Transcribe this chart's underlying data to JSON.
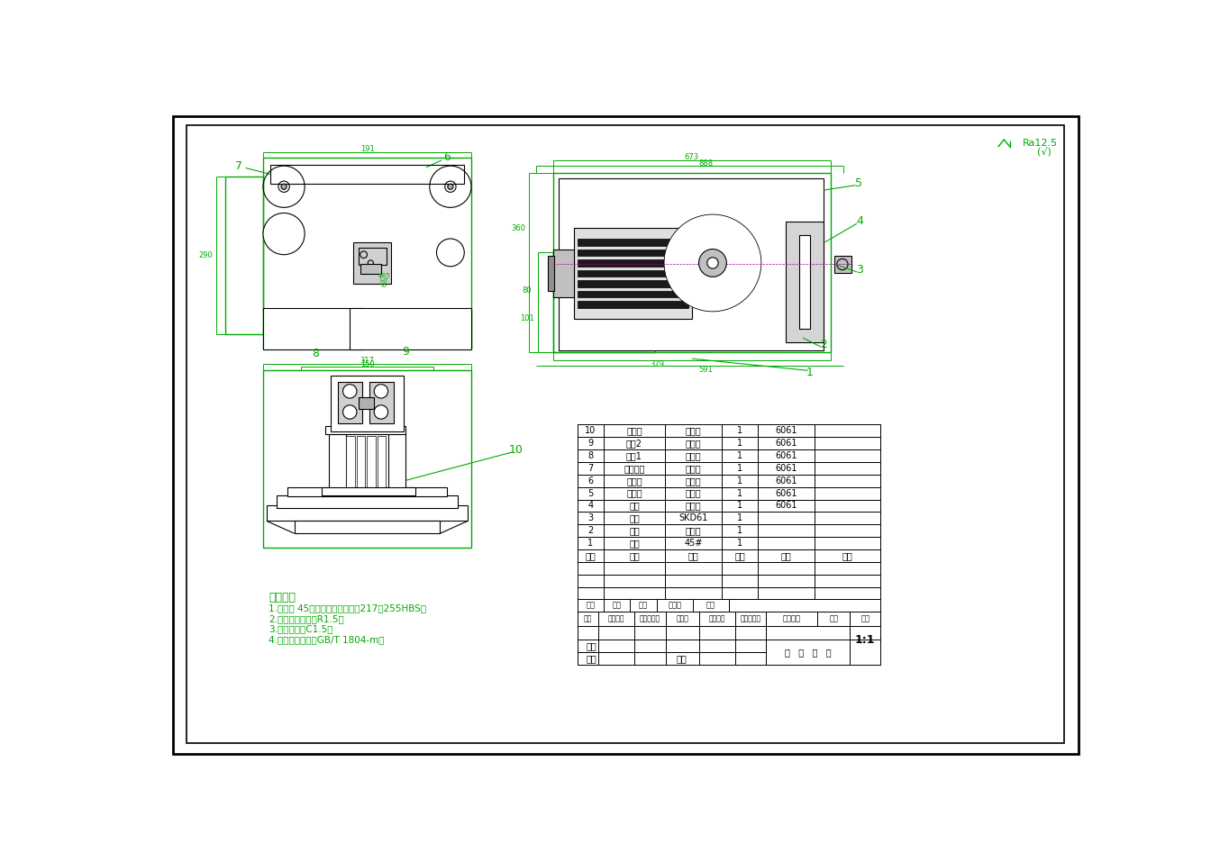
{
  "bg_color": "#ffffff",
  "border_color": "#000000",
  "green_color": "#00AA00",
  "dark_green": "#006600",
  "gray_color": "#808080",
  "light_gray": "#C0C0C0",
  "tech_req_title": "技术要求",
  "tech_req": [
    "1.热处理 45，调质处理，硬度为217～255HBS；",
    "2.未注圆角半径为R1.5；",
    "3.未注倒角为C1.5；",
    "4.未注尺寸公差按GB/T 1804-m。"
  ],
  "bom_rows": [
    [
      "10",
      "偶心轮",
      "铝合金",
      "1",
      "6061",
      ""
    ],
    [
      "9",
      "摇板2",
      "铝合金",
      "1",
      "6061",
      ""
    ],
    [
      "8",
      "摇板1",
      "铝合金",
      "1",
      "6061",
      ""
    ],
    [
      "7",
      "连杆钉钉",
      "铝合金",
      "1",
      "6061",
      ""
    ],
    [
      "6",
      "连杆轮",
      "铝合金",
      "1",
      "6061",
      ""
    ],
    [
      "5",
      "曲柄轮",
      "铝合金",
      "1",
      "6061",
      ""
    ],
    [
      "4",
      "连杆",
      "铝合金",
      "1",
      "6061",
      ""
    ],
    [
      "3",
      "销钉",
      "SKD61",
      "1",
      "",
      ""
    ],
    [
      "2",
      "印章",
      "不锈锂",
      "1",
      "",
      ""
    ],
    [
      "1",
      "底座",
      "45#",
      "1",
      "",
      ""
    ]
  ],
  "bom_header": [
    "序号",
    "名称",
    "材料",
    "数量",
    "标准",
    "备注"
  ]
}
